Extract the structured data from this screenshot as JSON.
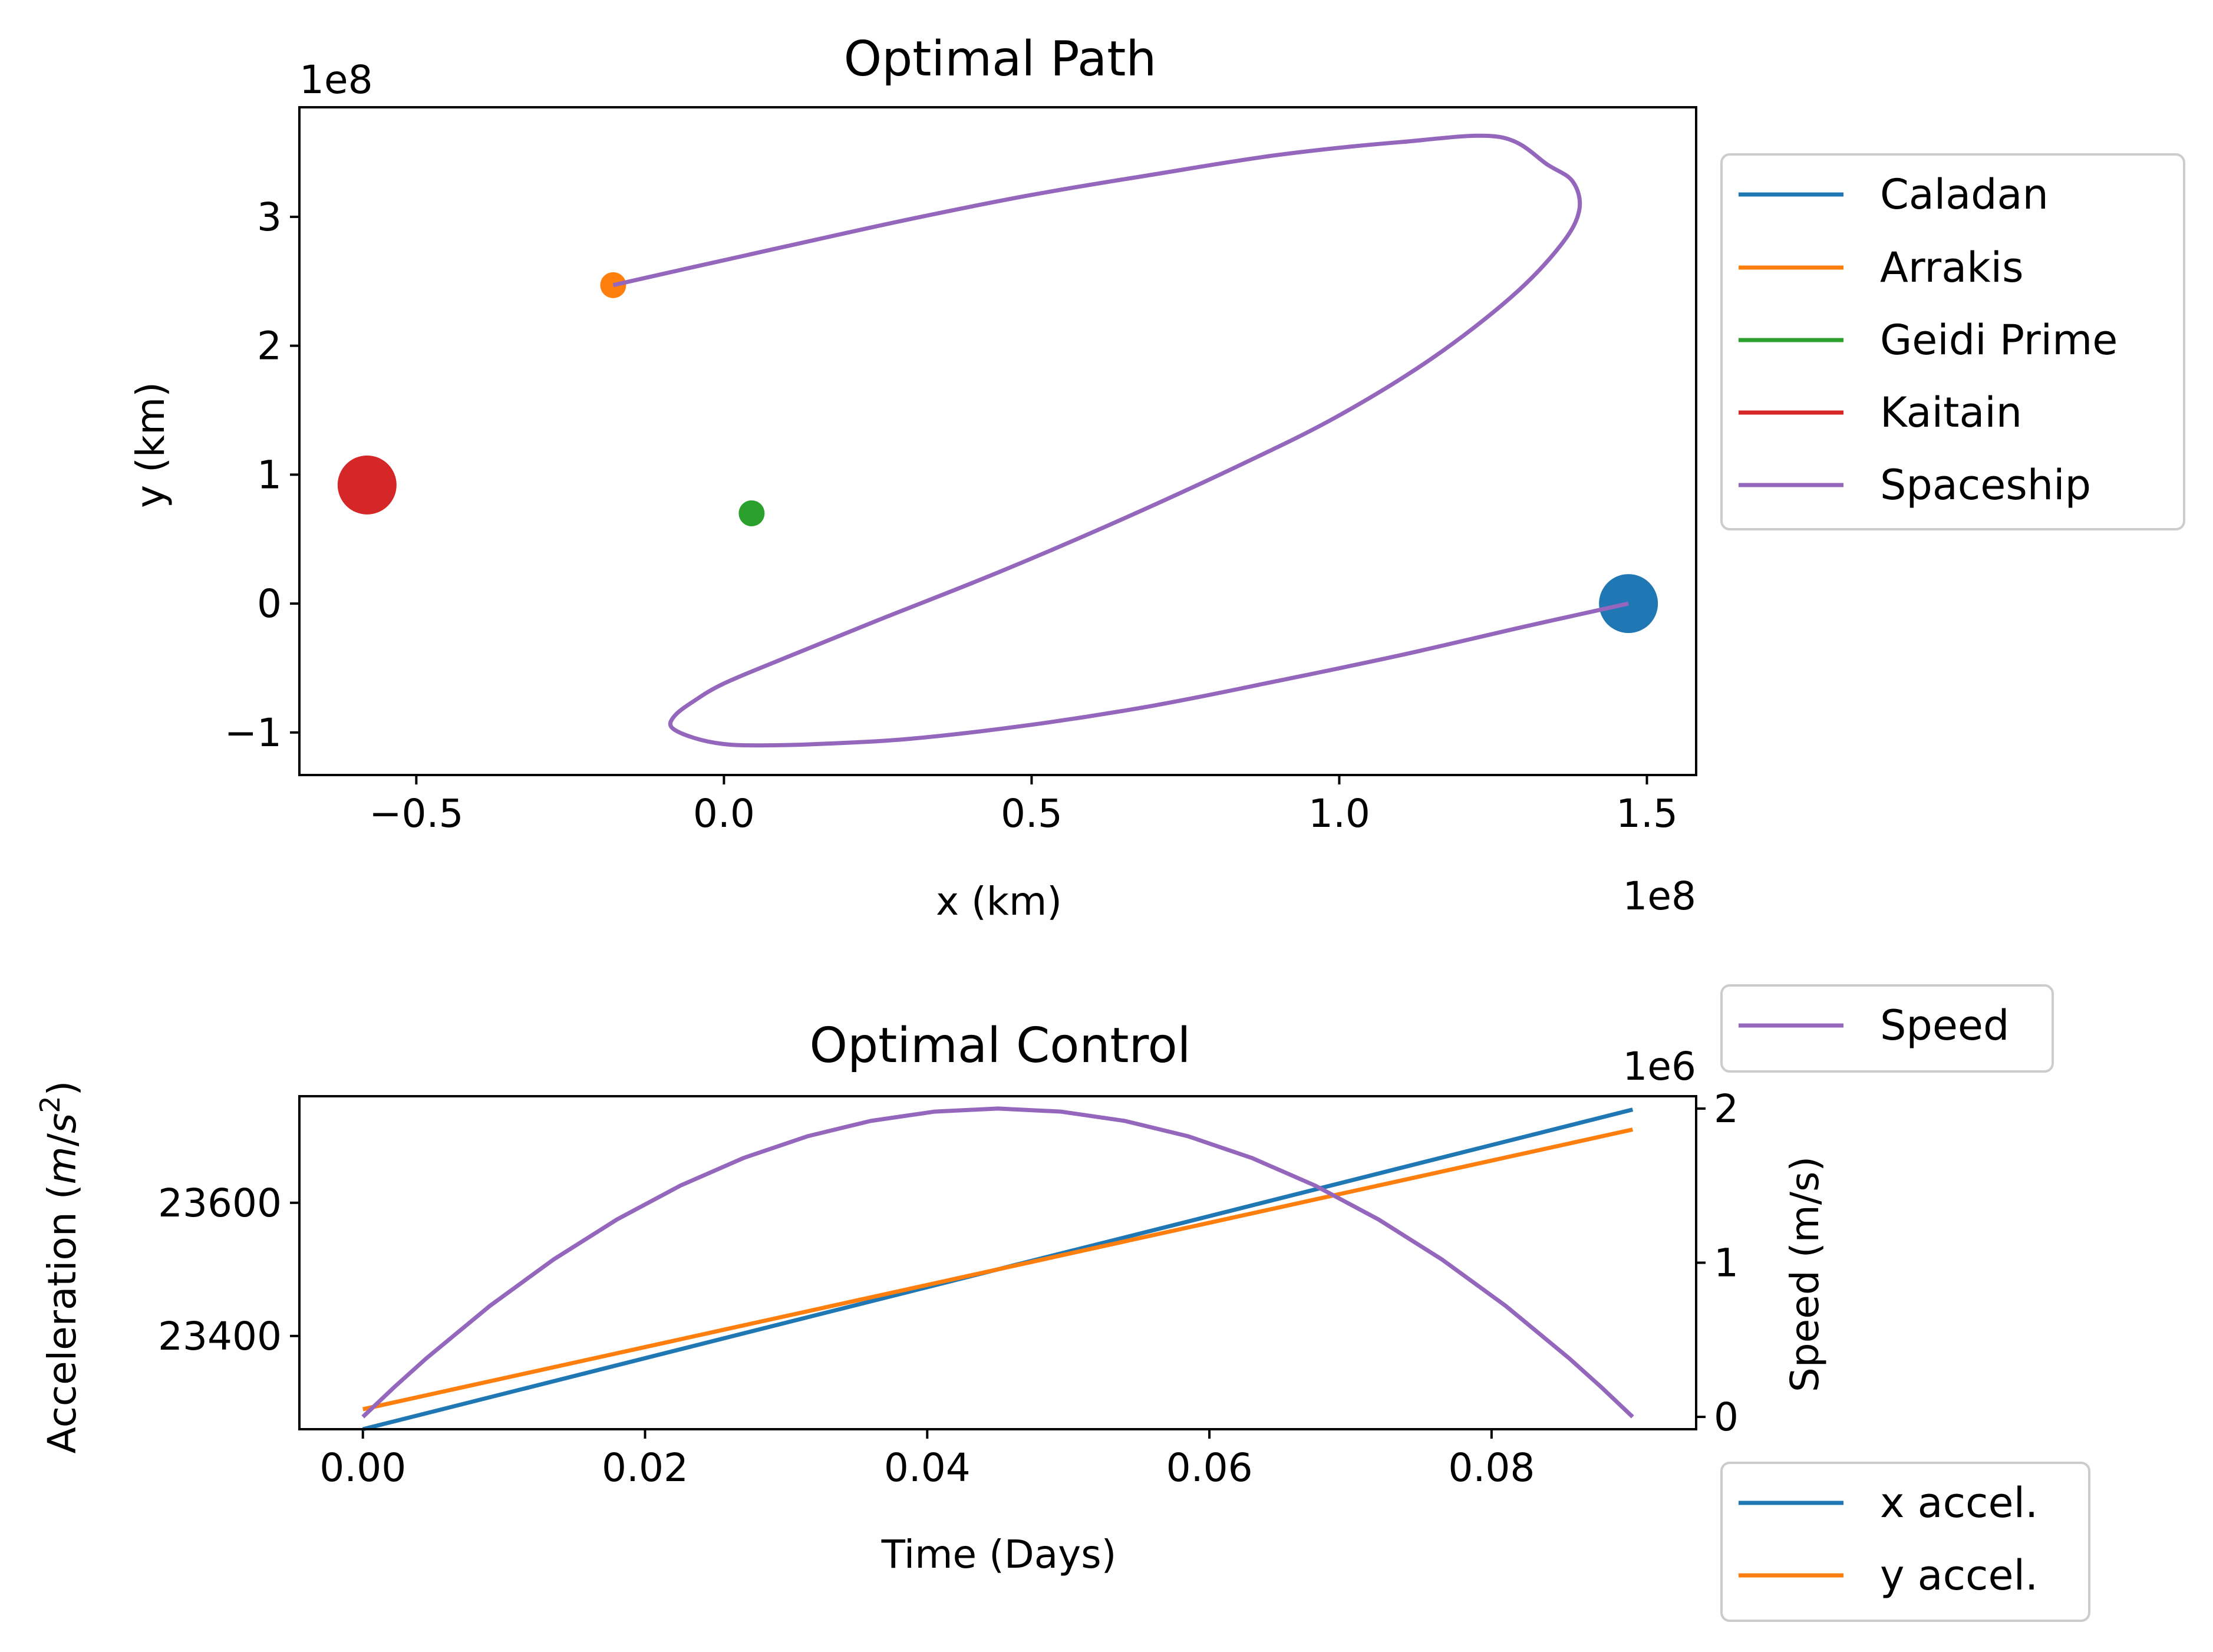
{
  "chart_data": [
    {
      "type": "line",
      "title": "Optimal Path",
      "xlabel": "x (km)",
      "ylabel": "y (km)",
      "x_offset_label": "1e8",
      "y_offset_label": "1e8",
      "xlim": [
        -0.69,
        1.58
      ],
      "ylim": [
        -1.33,
        3.85
      ],
      "xticks": [
        {
          "v": -0.5,
          "label": "−0.5"
        },
        {
          "v": 0.0,
          "label": "0.0"
        },
        {
          "v": 0.5,
          "label": "0.5"
        },
        {
          "v": 1.0,
          "label": "1.0"
        },
        {
          "v": 1.5,
          "label": "1.5"
        }
      ],
      "yticks": [
        {
          "v": -1,
          "label": "−1"
        },
        {
          "v": 0,
          "label": "0"
        },
        {
          "v": 1,
          "label": "1"
        },
        {
          "v": 2,
          "label": "2"
        },
        {
          "v": 3,
          "label": "3"
        }
      ],
      "planets": [
        {
          "name": "Caladan",
          "color": "#1f77b4",
          "x": 1.47,
          "y": 0.0,
          "size": "large"
        },
        {
          "name": "Arrakis",
          "color": "#ff7f0e",
          "x": -0.18,
          "y": 2.47,
          "size": "small"
        },
        {
          "name": "Geidi Prime",
          "color": "#2ca02c",
          "x": 0.045,
          "y": 0.7,
          "size": "small"
        },
        {
          "name": "Kaitain",
          "color": "#d62728",
          "x": -0.58,
          "y": 0.92,
          "size": "large"
        }
      ],
      "series": [
        {
          "name": "Spaceship",
          "color": "#9467bd",
          "x": [
            1.47,
            1.3,
            1.1,
            0.9,
            0.7,
            0.5,
            0.3,
            0.15,
            0.06,
            0.0,
            -0.05,
            -0.085,
            -0.08,
            -0.05,
            0.0,
            0.1,
            0.25,
            0.45,
            0.65,
            0.85,
            1.0,
            1.15,
            1.28,
            1.36,
            1.39,
            1.38,
            1.34,
            1.26,
            1.1,
            0.9,
            0.7,
            0.5,
            0.3,
            0.1,
            -0.05,
            -0.18
          ],
          "y": [
            0.0,
            -0.18,
            -0.4,
            -0.6,
            -0.79,
            -0.94,
            -1.05,
            -1.09,
            -1.1,
            -1.09,
            -1.04,
            -0.96,
            -0.87,
            -0.76,
            -0.62,
            -0.42,
            -0.13,
            0.25,
            0.66,
            1.1,
            1.46,
            1.9,
            2.38,
            2.78,
            3.05,
            3.27,
            3.4,
            3.62,
            3.58,
            3.48,
            3.33,
            3.17,
            2.98,
            2.77,
            2.61,
            2.47
          ]
        }
      ],
      "legend": {
        "position": "outside-right",
        "entries": [
          {
            "label": "Caladan",
            "color": "#1f77b4"
          },
          {
            "label": "Arrakis",
            "color": "#ff7f0e"
          },
          {
            "label": "Geidi Prime",
            "color": "#2ca02c"
          },
          {
            "label": "Kaitain",
            "color": "#d62728"
          },
          {
            "label": "Spaceship",
            "color": "#9467bd"
          }
        ]
      }
    },
    {
      "type": "line",
      "title": "Optimal Control",
      "xlabel": "Time (Days)",
      "ylabel": "Acceleration (m/s²)",
      "ylabel_right": "Speed (m/s)",
      "y_right_offset_label": "1e6",
      "xlim": [
        -0.0045,
        0.0945
      ],
      "ylim": [
        23260,
        23760
      ],
      "ylim_right": [
        -0.08,
        2.08
      ],
      "xticks": [
        {
          "v": 0.0,
          "label": "0.00"
        },
        {
          "v": 0.02,
          "label": "0.02"
        },
        {
          "v": 0.04,
          "label": "0.04"
        },
        {
          "v": 0.06,
          "label": "0.06"
        },
        {
          "v": 0.08,
          "label": "0.08"
        }
      ],
      "yticks": [
        {
          "v": 23400,
          "label": "23400"
        },
        {
          "v": 23600,
          "label": "23600"
        }
      ],
      "yticks_right": [
        {
          "v": 0,
          "label": "0"
        },
        {
          "v": 1,
          "label": "1"
        },
        {
          "v": 2,
          "label": "2"
        }
      ],
      "series": [
        {
          "name": "x accel.",
          "color": "#1f77b4",
          "axis": "left",
          "x": [
            0.0,
            0.09
          ],
          "y": [
            23260,
            23740
          ]
        },
        {
          "name": "y accel.",
          "color": "#ff7f0e",
          "axis": "left",
          "x": [
            0.0,
            0.09
          ],
          "y": [
            23290,
            23710
          ]
        },
        {
          "name": "Speed",
          "color": "#9467bd",
          "axis": "right",
          "x": [
            0.0,
            0.00225,
            0.0045,
            0.009,
            0.0135,
            0.018,
            0.0225,
            0.027,
            0.0315,
            0.036,
            0.0405,
            0.045,
            0.0495,
            0.054,
            0.0585,
            0.063,
            0.0675,
            0.072,
            0.0765,
            0.081,
            0.0855,
            0.08775,
            0.09
          ],
          "y": [
            0.0,
            0.195,
            0.38,
            0.72,
            1.02,
            1.28,
            1.5,
            1.68,
            1.82,
            1.92,
            1.98,
            2.0,
            1.98,
            1.92,
            1.82,
            1.68,
            1.5,
            1.28,
            1.02,
            0.72,
            0.38,
            0.195,
            0.0
          ]
        }
      ],
      "legends": [
        {
          "position": "outside-top-right",
          "entries": [
            {
              "label": "Speed",
              "color": "#9467bd"
            }
          ]
        },
        {
          "position": "outside-bottom-right",
          "entries": [
            {
              "label": "x accel.",
              "color": "#1f77b4"
            },
            {
              "label": "y accel.",
              "color": "#ff7f0e"
            }
          ]
        }
      ]
    }
  ]
}
